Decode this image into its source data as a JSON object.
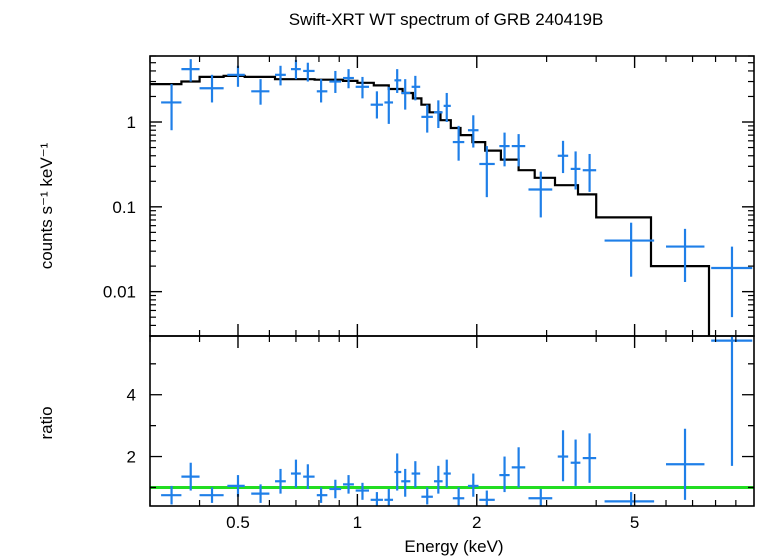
{
  "title": "Swift-XRT WT spectrum of GRB 240419B",
  "colors": {
    "data": "#1f7fe8",
    "model": "#000000",
    "unity": "#22dd22",
    "frame": "#000000"
  },
  "chart_data": [
    {
      "type": "scatter",
      "panel": "spectrum",
      "title": "Swift-XRT WT spectrum of GRB 240419B",
      "xlabel": "",
      "ylabel": "counts s⁻¹ keV⁻¹",
      "xscale": "log",
      "yscale": "log",
      "xlim": [
        0.3,
        10
      ],
      "ylim": [
        0.003,
        6
      ],
      "yticks": [
        {
          "v": 1,
          "label": "1"
        },
        {
          "v": 0.1,
          "label": "0.1"
        },
        {
          "v": 0.01,
          "label": "0.01"
        }
      ],
      "data": [
        {
          "x": 0.34,
          "xlo": 0.32,
          "xhi": 0.36,
          "y": 1.7,
          "ylo": 0.8,
          "yhi": 2.8
        },
        {
          "x": 0.38,
          "xlo": 0.36,
          "xhi": 0.4,
          "y": 4.2,
          "ylo": 3.0,
          "yhi": 5.5
        },
        {
          "x": 0.43,
          "xlo": 0.4,
          "xhi": 0.46,
          "y": 2.5,
          "ylo": 1.7,
          "yhi": 3.6
        },
        {
          "x": 0.5,
          "xlo": 0.47,
          "xhi": 0.52,
          "y": 3.6,
          "ylo": 2.6,
          "yhi": 4.6
        },
        {
          "x": 0.57,
          "xlo": 0.54,
          "xhi": 0.6,
          "y": 2.3,
          "ylo": 1.6,
          "yhi": 3.2
        },
        {
          "x": 0.64,
          "xlo": 0.62,
          "xhi": 0.66,
          "y": 3.6,
          "ylo": 2.7,
          "yhi": 4.6
        },
        {
          "x": 0.7,
          "xlo": 0.68,
          "xhi": 0.72,
          "y": 4.2,
          "ylo": 3.2,
          "yhi": 5.4
        },
        {
          "x": 0.75,
          "xlo": 0.73,
          "xhi": 0.78,
          "y": 4.0,
          "ylo": 3.0,
          "yhi": 5.0
        },
        {
          "x": 0.81,
          "xlo": 0.79,
          "xhi": 0.84,
          "y": 2.3,
          "ylo": 1.7,
          "yhi": 3.2
        },
        {
          "x": 0.88,
          "xlo": 0.85,
          "xhi": 0.91,
          "y": 3.0,
          "ylo": 2.2,
          "yhi": 4.0
        },
        {
          "x": 0.95,
          "xlo": 0.92,
          "xhi": 0.98,
          "y": 3.3,
          "ylo": 2.5,
          "yhi": 4.2
        },
        {
          "x": 1.03,
          "xlo": 0.99,
          "xhi": 1.07,
          "y": 2.6,
          "ylo": 1.9,
          "yhi": 3.4
        },
        {
          "x": 1.12,
          "xlo": 1.08,
          "xhi": 1.16,
          "y": 1.6,
          "ylo": 1.1,
          "yhi": 2.3
        },
        {
          "x": 1.2,
          "xlo": 1.17,
          "xhi": 1.23,
          "y": 1.7,
          "ylo": 0.95,
          "yhi": 2.6
        },
        {
          "x": 1.26,
          "xlo": 1.24,
          "xhi": 1.29,
          "y": 3.1,
          "ylo": 2.2,
          "yhi": 4.2
        },
        {
          "x": 1.32,
          "xlo": 1.29,
          "xhi": 1.36,
          "y": 2.2,
          "ylo": 1.4,
          "yhi": 3.2
        },
        {
          "x": 1.4,
          "xlo": 1.37,
          "xhi": 1.44,
          "y": 2.6,
          "ylo": 1.8,
          "yhi": 3.5
        },
        {
          "x": 1.5,
          "xlo": 1.45,
          "xhi": 1.55,
          "y": 1.15,
          "ylo": 0.75,
          "yhi": 1.6
        },
        {
          "x": 1.6,
          "xlo": 1.56,
          "xhi": 1.64,
          "y": 1.3,
          "ylo": 0.85,
          "yhi": 1.8
        },
        {
          "x": 1.68,
          "xlo": 1.65,
          "xhi": 1.72,
          "y": 1.55,
          "ylo": 1.0,
          "yhi": 2.2
        },
        {
          "x": 1.8,
          "xlo": 1.74,
          "xhi": 1.86,
          "y": 0.58,
          "ylo": 0.35,
          "yhi": 0.9
        },
        {
          "x": 1.96,
          "xlo": 1.9,
          "xhi": 2.02,
          "y": 0.8,
          "ylo": 0.5,
          "yhi": 1.2
        },
        {
          "x": 2.12,
          "xlo": 2.03,
          "xhi": 2.22,
          "y": 0.32,
          "ylo": 0.13,
          "yhi": 0.52
        },
        {
          "x": 2.35,
          "xlo": 2.28,
          "xhi": 2.42,
          "y": 0.52,
          "ylo": 0.3,
          "yhi": 0.75
        },
        {
          "x": 2.55,
          "xlo": 2.45,
          "xhi": 2.65,
          "y": 0.52,
          "ylo": 0.3,
          "yhi": 0.72
        },
        {
          "x": 2.9,
          "xlo": 2.7,
          "xhi": 3.1,
          "y": 0.16,
          "ylo": 0.075,
          "yhi": 0.26
        },
        {
          "x": 3.3,
          "xlo": 3.2,
          "xhi": 3.4,
          "y": 0.4,
          "ylo": 0.25,
          "yhi": 0.6
        },
        {
          "x": 3.55,
          "xlo": 3.45,
          "xhi": 3.65,
          "y": 0.28,
          "ylo": 0.16,
          "yhi": 0.45
        },
        {
          "x": 3.85,
          "xlo": 3.7,
          "xhi": 4.0,
          "y": 0.27,
          "ylo": 0.15,
          "yhi": 0.42
        },
        {
          "x": 4.9,
          "xlo": 4.2,
          "xhi": 5.6,
          "y": 0.04,
          "ylo": 0.015,
          "yhi": 0.065
        },
        {
          "x": 6.7,
          "xlo": 6.0,
          "xhi": 7.5,
          "y": 0.034,
          "ylo": 0.013,
          "yhi": 0.055
        },
        {
          "x": 8.8,
          "xlo": 7.8,
          "xhi": 9.9,
          "y": 0.019,
          "ylo": 0.005,
          "yhi": 0.034
        }
      ],
      "model_steps": [
        {
          "x0": 0.3,
          "x1": 0.36,
          "y": 2.8
        },
        {
          "x0": 0.36,
          "x1": 0.4,
          "y": 3.0
        },
        {
          "x0": 0.4,
          "x1": 0.46,
          "y": 3.4
        },
        {
          "x0": 0.46,
          "x1": 0.52,
          "y": 3.5
        },
        {
          "x0": 0.52,
          "x1": 0.62,
          "y": 3.4
        },
        {
          "x0": 0.62,
          "x1": 0.78,
          "y": 3.2
        },
        {
          "x0": 0.78,
          "x1": 0.92,
          "y": 3.15
        },
        {
          "x0": 0.92,
          "x1": 1.0,
          "y": 3.05
        },
        {
          "x0": 1.0,
          "x1": 1.1,
          "y": 2.9
        },
        {
          "x0": 1.1,
          "x1": 1.2,
          "y": 2.7
        },
        {
          "x0": 1.2,
          "x1": 1.3,
          "y": 2.45
        },
        {
          "x0": 1.3,
          "x1": 1.38,
          "y": 2.2
        },
        {
          "x0": 1.38,
          "x1": 1.45,
          "y": 1.9
        },
        {
          "x0": 1.45,
          "x1": 1.52,
          "y": 1.6
        },
        {
          "x0": 1.52,
          "x1": 1.62,
          "y": 1.3
        },
        {
          "x0": 1.62,
          "x1": 1.72,
          "y": 1.05
        },
        {
          "x0": 1.72,
          "x1": 1.82,
          "y": 0.85
        },
        {
          "x0": 1.82,
          "x1": 1.95,
          "y": 0.7
        },
        {
          "x0": 1.95,
          "x1": 2.1,
          "y": 0.58
        },
        {
          "x0": 2.1,
          "x1": 2.3,
          "y": 0.46
        },
        {
          "x0": 2.3,
          "x1": 2.55,
          "y": 0.36
        },
        {
          "x0": 2.55,
          "x1": 2.8,
          "y": 0.27
        },
        {
          "x0": 2.8,
          "x1": 3.15,
          "y": 0.22
        },
        {
          "x0": 3.15,
          "x1": 3.6,
          "y": 0.18
        },
        {
          "x0": 3.6,
          "x1": 4.0,
          "y": 0.14
        },
        {
          "x0": 4.0,
          "x1": 5.5,
          "y": 0.075
        },
        {
          "x0": 5.5,
          "x1": 7.7,
          "y": 0.02
        },
        {
          "x0": 7.7,
          "x1": 7.7,
          "y": 0.003
        }
      ]
    },
    {
      "type": "scatter",
      "panel": "ratio",
      "xlabel": "Energy (keV)",
      "ylabel": "ratio",
      "xscale": "log",
      "yscale": "linear",
      "xlim": [
        0.3,
        10
      ],
      "ylim": [
        0.4,
        5.9
      ],
      "yticks": [
        {
          "v": 2,
          "label": "2"
        },
        {
          "v": 4,
          "label": "4"
        }
      ],
      "xticks": [
        {
          "v": 0.5,
          "label": "0.5"
        },
        {
          "v": 1,
          "label": "1"
        },
        {
          "v": 2,
          "label": "2"
        },
        {
          "v": 5,
          "label": "5"
        }
      ],
      "unity_line": 1,
      "data": [
        {
          "x": 0.34,
          "xlo": 0.32,
          "xhi": 0.36,
          "y": 0.75,
          "ylo": 0.45,
          "yhi": 1.05
        },
        {
          "x": 0.38,
          "xlo": 0.36,
          "xhi": 0.4,
          "y": 1.35,
          "ylo": 0.9,
          "yhi": 1.8
        },
        {
          "x": 0.43,
          "xlo": 0.4,
          "xhi": 0.46,
          "y": 0.75,
          "ylo": 0.5,
          "yhi": 1.0
        },
        {
          "x": 0.5,
          "xlo": 0.47,
          "xhi": 0.52,
          "y": 1.05,
          "ylo": 0.7,
          "yhi": 1.4
        },
        {
          "x": 0.57,
          "xlo": 0.54,
          "xhi": 0.6,
          "y": 0.8,
          "ylo": 0.5,
          "yhi": 1.1
        },
        {
          "x": 0.64,
          "xlo": 0.62,
          "xhi": 0.66,
          "y": 1.2,
          "ylo": 0.8,
          "yhi": 1.6
        },
        {
          "x": 0.7,
          "xlo": 0.68,
          "xhi": 0.72,
          "y": 1.45,
          "ylo": 1.0,
          "yhi": 1.9
        },
        {
          "x": 0.75,
          "xlo": 0.73,
          "xhi": 0.78,
          "y": 1.35,
          "ylo": 0.95,
          "yhi": 1.75
        },
        {
          "x": 0.81,
          "xlo": 0.79,
          "xhi": 0.84,
          "y": 0.75,
          "ylo": 0.5,
          "yhi": 1.0
        },
        {
          "x": 0.88,
          "xlo": 0.85,
          "xhi": 0.91,
          "y": 0.95,
          "ylo": 0.65,
          "yhi": 1.25
        },
        {
          "x": 0.95,
          "xlo": 0.92,
          "xhi": 0.98,
          "y": 1.1,
          "ylo": 0.8,
          "yhi": 1.4
        },
        {
          "x": 1.03,
          "xlo": 0.99,
          "xhi": 1.07,
          "y": 0.9,
          "ylo": 0.6,
          "yhi": 1.15
        },
        {
          "x": 1.12,
          "xlo": 1.08,
          "xhi": 1.16,
          "y": 0.6,
          "ylo": 0.4,
          "yhi": 0.85
        },
        {
          "x": 1.2,
          "xlo": 1.17,
          "xhi": 1.23,
          "y": 0.6,
          "ylo": 0.4,
          "yhi": 0.95
        },
        {
          "x": 1.26,
          "xlo": 1.24,
          "xhi": 1.29,
          "y": 1.5,
          "ylo": 0.9,
          "yhi": 2.1
        },
        {
          "x": 1.32,
          "xlo": 1.29,
          "xhi": 1.36,
          "y": 1.2,
          "ylo": 0.7,
          "yhi": 1.6
        },
        {
          "x": 1.4,
          "xlo": 1.37,
          "xhi": 1.44,
          "y": 1.45,
          "ylo": 1.0,
          "yhi": 1.85
        },
        {
          "x": 1.5,
          "xlo": 1.45,
          "xhi": 1.55,
          "y": 0.7,
          "ylo": 0.45,
          "yhi": 1.0
        },
        {
          "x": 1.6,
          "xlo": 1.56,
          "xhi": 1.64,
          "y": 1.2,
          "ylo": 0.8,
          "yhi": 1.7
        },
        {
          "x": 1.68,
          "xlo": 1.65,
          "xhi": 1.72,
          "y": 1.45,
          "ylo": 1.0,
          "yhi": 1.9
        },
        {
          "x": 1.8,
          "xlo": 1.74,
          "xhi": 1.86,
          "y": 0.65,
          "ylo": 0.4,
          "yhi": 1.0
        },
        {
          "x": 1.96,
          "xlo": 1.9,
          "xhi": 2.02,
          "y": 1.05,
          "ylo": 0.7,
          "yhi": 1.45
        },
        {
          "x": 2.12,
          "xlo": 2.03,
          "xhi": 2.22,
          "y": 0.6,
          "ylo": 0.4,
          "yhi": 0.9
        },
        {
          "x": 2.35,
          "xlo": 2.28,
          "xhi": 2.42,
          "y": 1.4,
          "ylo": 0.85,
          "yhi": 2.0
        },
        {
          "x": 2.55,
          "xlo": 2.45,
          "xhi": 2.65,
          "y": 1.65,
          "ylo": 1.0,
          "yhi": 2.3
        },
        {
          "x": 2.9,
          "xlo": 2.7,
          "xhi": 3.1,
          "y": 0.65,
          "ylo": 0.4,
          "yhi": 0.95
        },
        {
          "x": 3.3,
          "xlo": 3.2,
          "xhi": 3.4,
          "y": 2.0,
          "ylo": 1.2,
          "yhi": 2.85
        },
        {
          "x": 3.55,
          "xlo": 3.45,
          "xhi": 3.65,
          "y": 1.8,
          "ylo": 1.05,
          "yhi": 2.55
        },
        {
          "x": 3.85,
          "xlo": 3.7,
          "xhi": 4.0,
          "y": 1.95,
          "ylo": 1.15,
          "yhi": 2.75
        },
        {
          "x": 4.9,
          "xlo": 4.2,
          "xhi": 5.6,
          "y": 0.55,
          "ylo": 0.4,
          "yhi": 0.85
        },
        {
          "x": 6.7,
          "xlo": 6.0,
          "xhi": 7.5,
          "y": 1.75,
          "ylo": 0.6,
          "yhi": 2.9
        },
        {
          "x": 8.8,
          "xlo": 7.8,
          "xhi": 9.9,
          "y": 5.75,
          "ylo": 1.7,
          "yhi": 5.9
        }
      ]
    }
  ]
}
